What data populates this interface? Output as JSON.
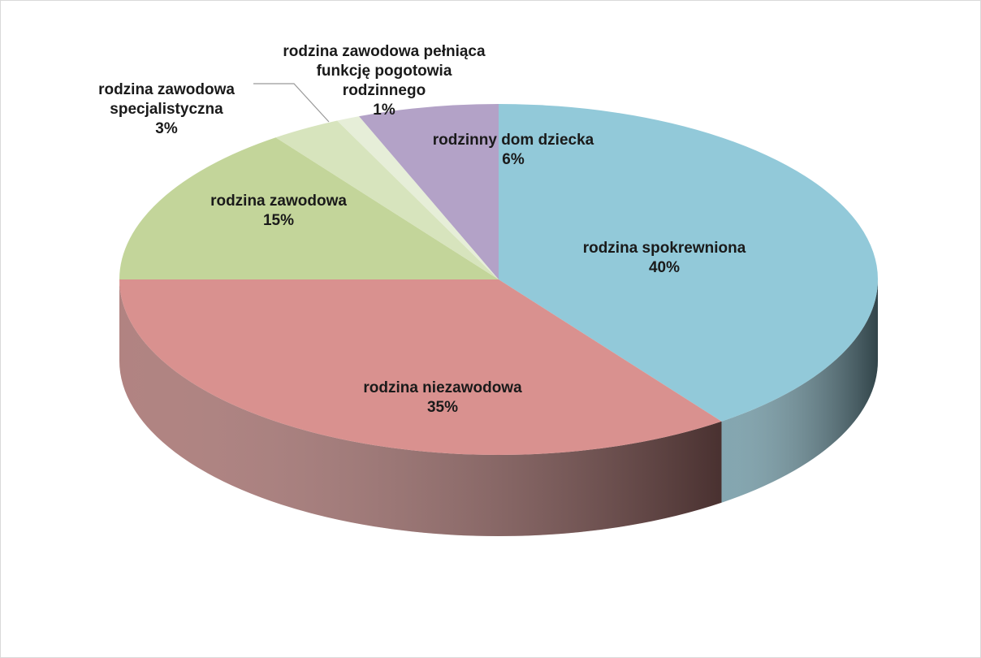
{
  "chart_data": {
    "type": "pie",
    "categories": [
      "rodzina spokrewniona",
      "rodzina niezawodowa",
      "rodzina zawodowa",
      "rodzina zawodowa specjalistyczna",
      "rodzina zawodowa pełniąca funkcję pogotowia rodzinnego",
      "rodzinny dom dziecka"
    ],
    "values": [
      40,
      35,
      15,
      3,
      1,
      6
    ],
    "value_labels": [
      "40%",
      "35%",
      "15%",
      "3%",
      "1%",
      "6%"
    ],
    "colors": [
      "#92c9d9",
      "#d9918f",
      "#c3d59a",
      "#d7e4bd",
      "#e6eed8",
      "#b3a2c7"
    ]
  }
}
